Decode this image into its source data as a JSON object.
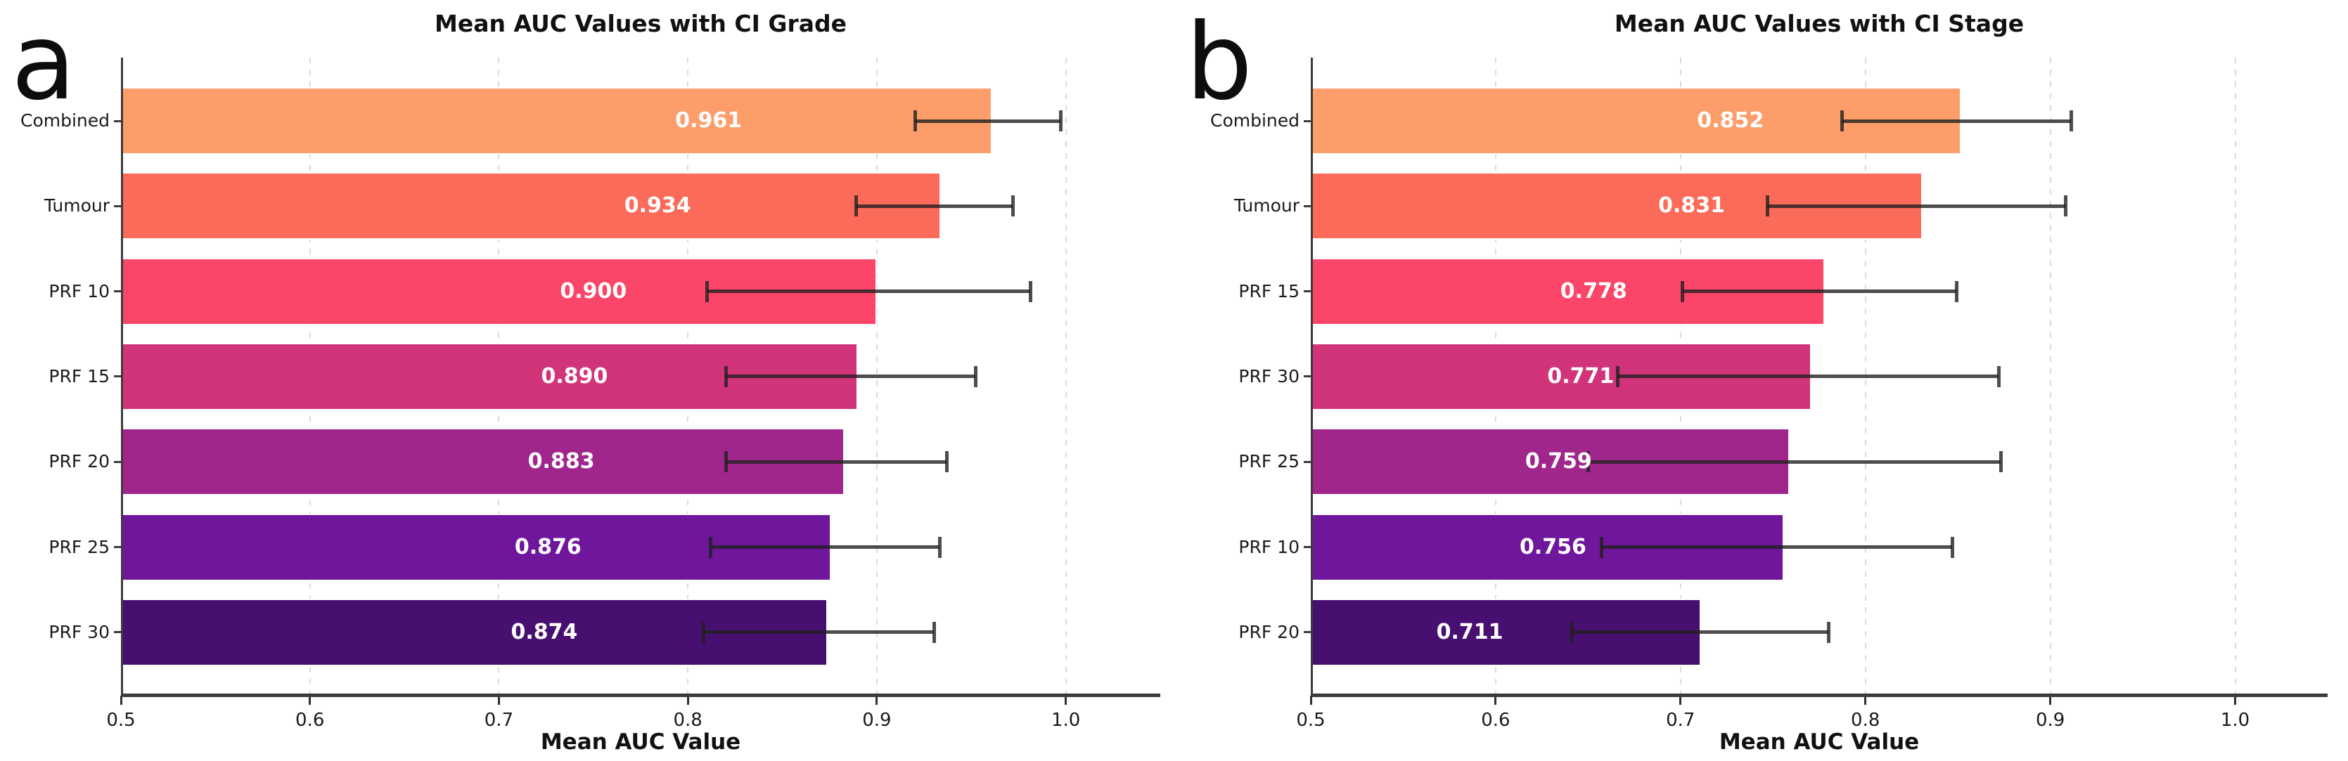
{
  "figure": {
    "background": "#ffffff",
    "panels": [
      {
        "panel_label": "a"
      },
      {
        "panel_label": "b"
      }
    ]
  },
  "chart_data": [
    {
      "type": "bar",
      "orientation": "horizontal",
      "title": "Mean AUC Values with CI Grade",
      "xlabel": "Mean AUC Value",
      "categories": [
        "Combined",
        "Tumour",
        "PRF 10",
        "PRF 15",
        "PRF 20",
        "PRF 25",
        "PRF 30"
      ],
      "values": [
        0.961,
        0.934,
        0.9,
        0.89,
        0.883,
        0.876,
        0.874
      ],
      "value_labels": [
        "0.961",
        "0.934",
        "0.900",
        "0.890",
        "0.883",
        "0.876",
        "0.874"
      ],
      "ci_low": [
        0.92,
        0.889,
        0.81,
        0.82,
        0.82,
        0.812,
        0.808
      ],
      "ci_high": [
        0.997,
        0.972,
        0.981,
        0.952,
        0.937,
        0.933,
        0.93
      ],
      "bar_colors": [
        "#FD9E6A",
        "#FC6B59",
        "#FB4569",
        "#D23479",
        "#A0268B",
        "#70169C",
        "#470F70"
      ],
      "error_bar_color": "rgba(33,33,33,0.8)",
      "xlim": [
        0.5,
        1.05
      ],
      "xticks": [
        0.5,
        0.6,
        0.7,
        0.8,
        0.9,
        1.0
      ],
      "xtick_labels": [
        "0.5",
        "0.6",
        "0.7",
        "0.8",
        "0.9",
        "1.0"
      ],
      "grid": "vertical-dashed",
      "legend": "none"
    },
    {
      "type": "bar",
      "orientation": "horizontal",
      "title": "Mean AUC Values with CI Stage",
      "xlabel": "Mean AUC Value",
      "categories": [
        "Combined",
        "Tumour",
        "PRF 15",
        "PRF 30",
        "PRF 25",
        "PRF 10",
        "PRF 20"
      ],
      "values": [
        0.852,
        0.831,
        0.778,
        0.771,
        0.759,
        0.756,
        0.711
      ],
      "value_labels": [
        "0.852",
        "0.831",
        "0.778",
        "0.771",
        "0.759",
        "0.756",
        "0.711"
      ],
      "ci_low": [
        0.787,
        0.747,
        0.701,
        0.666,
        0.65,
        0.657,
        0.641
      ],
      "ci_high": [
        0.911,
        0.908,
        0.849,
        0.872,
        0.873,
        0.847,
        0.78
      ],
      "bar_colors": [
        "#FD9E6A",
        "#FC6B59",
        "#FB4569",
        "#D23479",
        "#A0268B",
        "#70169C",
        "#470F70"
      ],
      "error_bar_color": "rgba(33,33,33,0.8)",
      "xlim": [
        0.5,
        1.05
      ],
      "xticks": [
        0.5,
        0.6,
        0.7,
        0.8,
        0.9,
        1.0
      ],
      "xtick_labels": [
        "0.5",
        "0.6",
        "0.7",
        "0.8",
        "0.9",
        "1.0"
      ],
      "grid": "vertical-dashed",
      "legend": "none"
    }
  ]
}
